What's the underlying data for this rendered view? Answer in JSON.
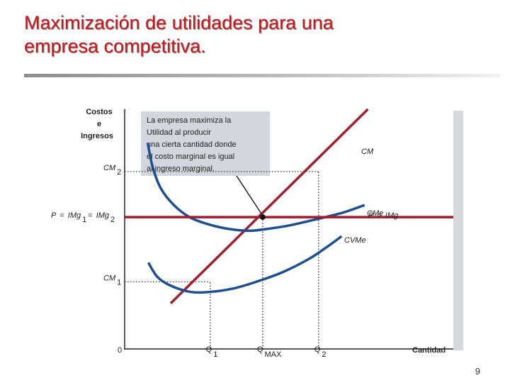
{
  "slide": {
    "title_line1": "Maximización de utilidades para una",
    "title_line2": "empresa competitiva.",
    "page_number": "9"
  },
  "chart_data": {
    "type": "line",
    "ylabel_lines": [
      "Costos",
      "e",
      "Ingresos"
    ],
    "xlabel": "Cantidad",
    "origin_label": "0",
    "annotation_lines": [
      "La empresa maximiza  la",
      "Utilidad  al producir",
      "una cierta cantidad donde",
      "el costo marginal  es igual",
      "al ingreso marginal."
    ],
    "y_ticks": [
      {
        "id": "cm2",
        "value": 0.74,
        "base": "CM",
        "sub": "2"
      },
      {
        "id": "cm1",
        "value": 0.28,
        "base": "CM",
        "sub": "1"
      }
    ],
    "price_level": {
      "value": 0.55,
      "left_label": {
        "p": "P",
        "eq1": "=",
        "img1": "IMg",
        "sub1": "1",
        "eq2": "=",
        "img2": "IMg",
        "sub2": "2"
      },
      "right_label": {
        "p": "P",
        "eq": "=",
        "img": "IMg"
      }
    },
    "x_ticks": [
      {
        "id": "q1",
        "value": 0.26,
        "base": "Q",
        "sub": "1"
      },
      {
        "id": "qmax",
        "value": 0.42,
        "base": "Q",
        "sub": "MAX"
      },
      {
        "id": "q2",
        "value": 0.59,
        "base": "Q",
        "sub": "2"
      }
    ],
    "xlim": [
      0,
      1
    ],
    "ylim": [
      0,
      1
    ],
    "series": [
      {
        "name": "CM",
        "color": "#a01f2e",
        "width": 3.5,
        "points": [
          [
            0.14,
            0.19
          ],
          [
            0.74,
            1.0
          ]
        ]
      },
      {
        "name": "CMe",
        "color": "#1f4e8e",
        "width": 3.5,
        "points": [
          [
            0.07,
            0.86
          ],
          [
            0.085,
            0.76
          ],
          [
            0.11,
            0.67
          ],
          [
            0.15,
            0.6
          ],
          [
            0.2,
            0.548
          ],
          [
            0.26,
            0.518
          ],
          [
            0.32,
            0.5
          ],
          [
            0.38,
            0.493
          ],
          [
            0.43,
            0.5
          ],
          [
            0.5,
            0.515
          ],
          [
            0.58,
            0.54
          ],
          [
            0.66,
            0.567
          ],
          [
            0.73,
            0.6
          ]
        ]
      },
      {
        "name": "CVMe",
        "color": "#1f4e8e",
        "width": 3.5,
        "points": [
          [
            0.072,
            0.36
          ],
          [
            0.1,
            0.3
          ],
          [
            0.14,
            0.264
          ],
          [
            0.2,
            0.238
          ],
          [
            0.26,
            0.238
          ],
          [
            0.33,
            0.252
          ],
          [
            0.4,
            0.28
          ],
          [
            0.48,
            0.32
          ],
          [
            0.56,
            0.375
          ],
          [
            0.62,
            0.43
          ],
          [
            0.66,
            0.47
          ]
        ]
      }
    ],
    "guides": [
      {
        "type": "hline",
        "at": 0.74,
        "to_x": 0.59
      },
      {
        "type": "hline",
        "at": 0.28,
        "to_x": 0.26
      },
      {
        "type": "vline",
        "at": 0.26,
        "to_y": 0.28
      },
      {
        "type": "vline",
        "at": 0.42,
        "to_y": 0.55
      },
      {
        "type": "vline",
        "at": 0.59,
        "to_y": 0.74
      }
    ],
    "point": {
      "x": 0.42,
      "y": 0.55
    },
    "colors": {
      "mc": "#a01f2e",
      "cost_curves": "#1f4e8e",
      "annotation_box": "#d3d7dd"
    }
  }
}
